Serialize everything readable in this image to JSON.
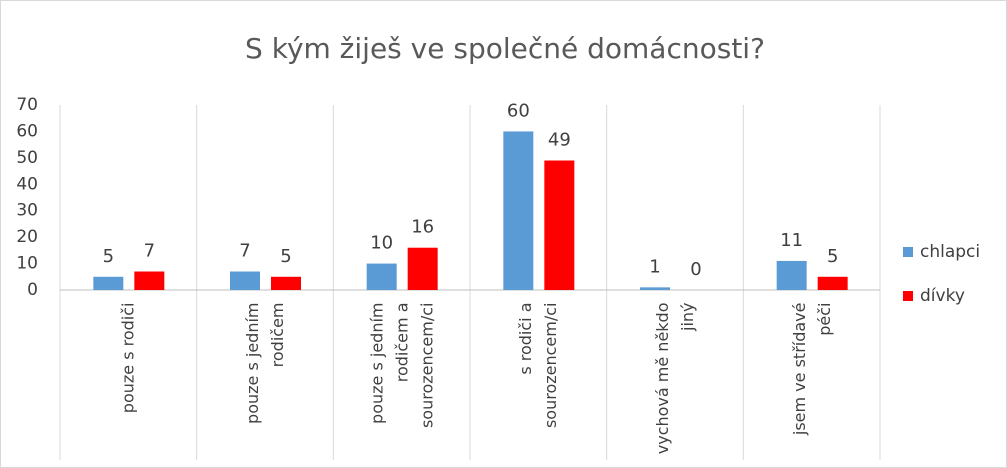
{
  "chart_data": {
    "type": "bar",
    "title": "S kým žiješ ve společné domácnosti?",
    "categories": [
      "pouze s rodiči",
      "pouze s jedním rodičem",
      "pouze s jedním rodičem a sourozencem/ci",
      "s rodiči a sourozencem/ci",
      "vychová mě někdo jiný",
      "jsem ve střídavé péči"
    ],
    "series": [
      {
        "name": "chlapci",
        "color": "#5b9bd5",
        "values": [
          5,
          7,
          10,
          60,
          1,
          11
        ]
      },
      {
        "name": "dívky",
        "color": "#ff0000",
        "values": [
          7,
          5,
          16,
          49,
          0,
          5
        ]
      }
    ],
    "ylim": [
      0,
      70
    ],
    "yticks": [
      0,
      10,
      20,
      30,
      40,
      50,
      60,
      70
    ],
    "legend": "right"
  }
}
